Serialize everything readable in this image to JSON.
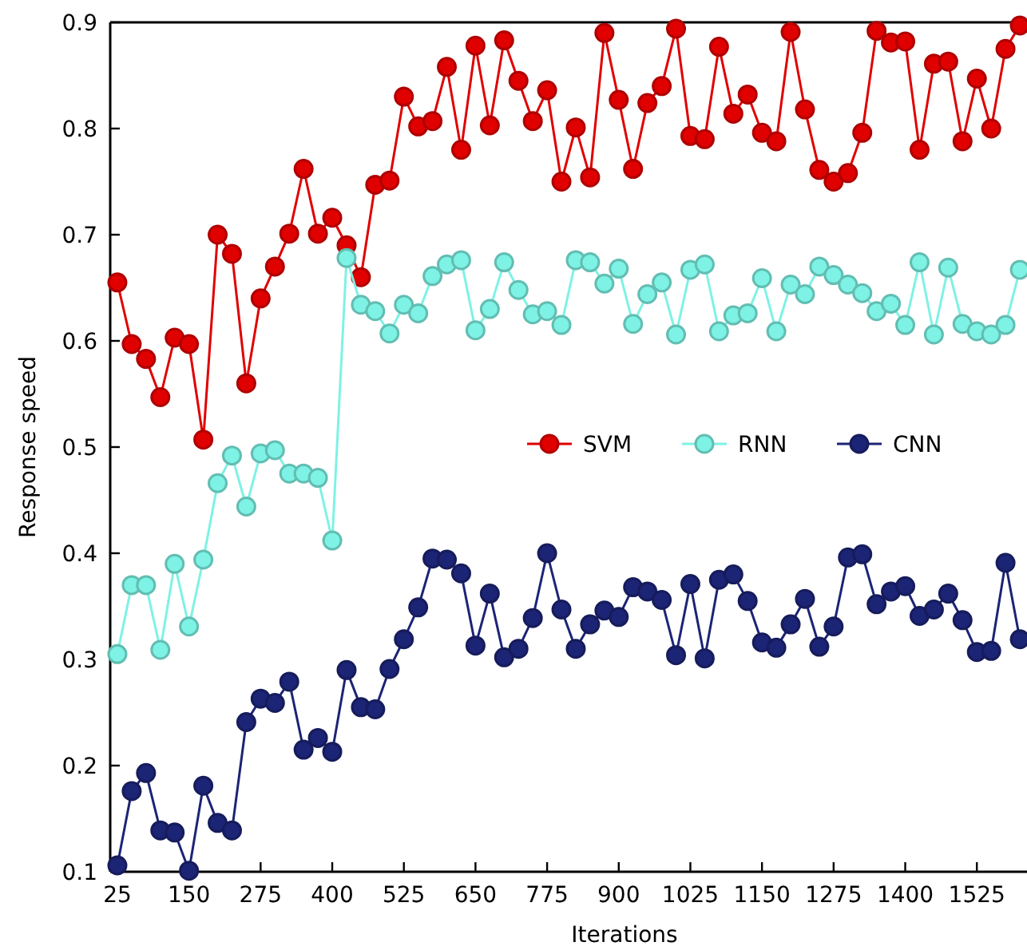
{
  "chart_data": {
    "type": "line",
    "xlabel": "Iterations",
    "ylabel": "Response speed",
    "x": [
      25,
      50,
      75,
      100,
      125,
      150,
      175,
      200,
      225,
      250,
      275,
      300,
      325,
      350,
      375,
      400,
      425,
      450,
      475,
      500,
      525,
      550,
      575,
      600,
      625,
      650,
      675,
      700,
      725,
      750,
      775,
      800,
      825,
      850,
      875,
      900,
      925,
      950,
      975,
      1000,
      1025,
      1050,
      1075,
      1100,
      1125,
      1150,
      1175,
      1200,
      1225,
      1250,
      1275,
      1300,
      1325,
      1350,
      1375,
      1400,
      1425,
      1450,
      1475,
      1500,
      1525,
      1550,
      1575,
      1600
    ],
    "series": [
      {
        "name": "SVM",
        "color": "#e00000",
        "values": [
          0.655,
          0.597,
          0.583,
          0.547,
          0.603,
          0.597,
          0.507,
          0.7,
          0.682,
          0.56,
          0.64,
          0.67,
          0.701,
          0.762,
          0.701,
          0.716,
          0.69,
          0.66,
          0.747,
          0.751,
          0.83,
          0.802,
          0.807,
          0.858,
          0.78,
          0.878,
          0.803,
          0.883,
          0.845,
          0.807,
          0.836,
          0.75,
          0.801,
          0.754,
          0.89,
          0.827,
          0.762,
          0.824,
          0.84,
          0.894,
          0.793,
          0.79,
          0.877,
          0.814,
          0.832,
          0.796,
          0.788,
          0.891,
          0.818,
          0.761,
          0.75,
          0.758,
          0.796,
          0.892,
          0.881,
          0.882,
          0.78,
          0.861,
          0.863,
          0.788,
          0.847,
          0.8,
          0.875,
          0.897
        ]
      },
      {
        "name": "RNN",
        "color": "#7ef2e4",
        "values": [
          0.305,
          0.37,
          0.37,
          0.309,
          0.39,
          0.331,
          0.394,
          0.466,
          0.492,
          0.444,
          0.494,
          0.497,
          0.475,
          0.475,
          0.471,
          0.412,
          0.678,
          0.634,
          0.628,
          0.607,
          0.634,
          0.626,
          0.661,
          0.672,
          0.676,
          0.61,
          0.63,
          0.674,
          0.648,
          0.625,
          0.628,
          0.615,
          0.676,
          0.674,
          0.654,
          0.668,
          0.616,
          0.644,
          0.655,
          0.606,
          0.667,
          0.672,
          0.609,
          0.624,
          0.626,
          0.659,
          0.609,
          0.653,
          0.644,
          0.67,
          0.662,
          0.653,
          0.645,
          0.628,
          0.635,
          0.615,
          0.674,
          0.606,
          0.669,
          0.616,
          0.609,
          0.606,
          0.615,
          0.667
        ]
      },
      {
        "name": "CNN",
        "color": "#1c2475",
        "values": [
          0.106,
          0.176,
          0.193,
          0.139,
          0.137,
          0.101,
          0.181,
          0.146,
          0.139,
          0.241,
          0.263,
          0.259,
          0.279,
          0.215,
          0.226,
          0.213,
          0.29,
          0.255,
          0.253,
          0.291,
          0.319,
          0.349,
          0.395,
          0.394,
          0.381,
          0.313,
          0.362,
          0.302,
          0.31,
          0.339,
          0.4,
          0.347,
          0.31,
          0.333,
          0.346,
          0.34,
          0.368,
          0.364,
          0.356,
          0.304,
          0.371,
          0.301,
          0.375,
          0.38,
          0.355,
          0.316,
          0.311,
          0.333,
          0.357,
          0.312,
          0.331,
          0.396,
          0.399,
          0.352,
          0.364,
          0.369,
          0.341,
          0.347,
          0.362,
          0.337,
          0.307,
          0.308,
          0.391,
          0.319
        ]
      }
    ],
    "xlim": [
      12.5,
      1612.5
    ],
    "xticks": [
      25,
      150,
      275,
      400,
      525,
      650,
      775,
      900,
      1025,
      1150,
      1275,
      1400,
      1525
    ],
    "ylim": [
      0.1,
      0.9
    ],
    "yticks": [
      0.1,
      0.2,
      0.3,
      0.4,
      0.5,
      0.6,
      0.7,
      0.8,
      0.9
    ],
    "grid": false,
    "legend": "right",
    "marker": "circle",
    "line_style": "solid"
  }
}
